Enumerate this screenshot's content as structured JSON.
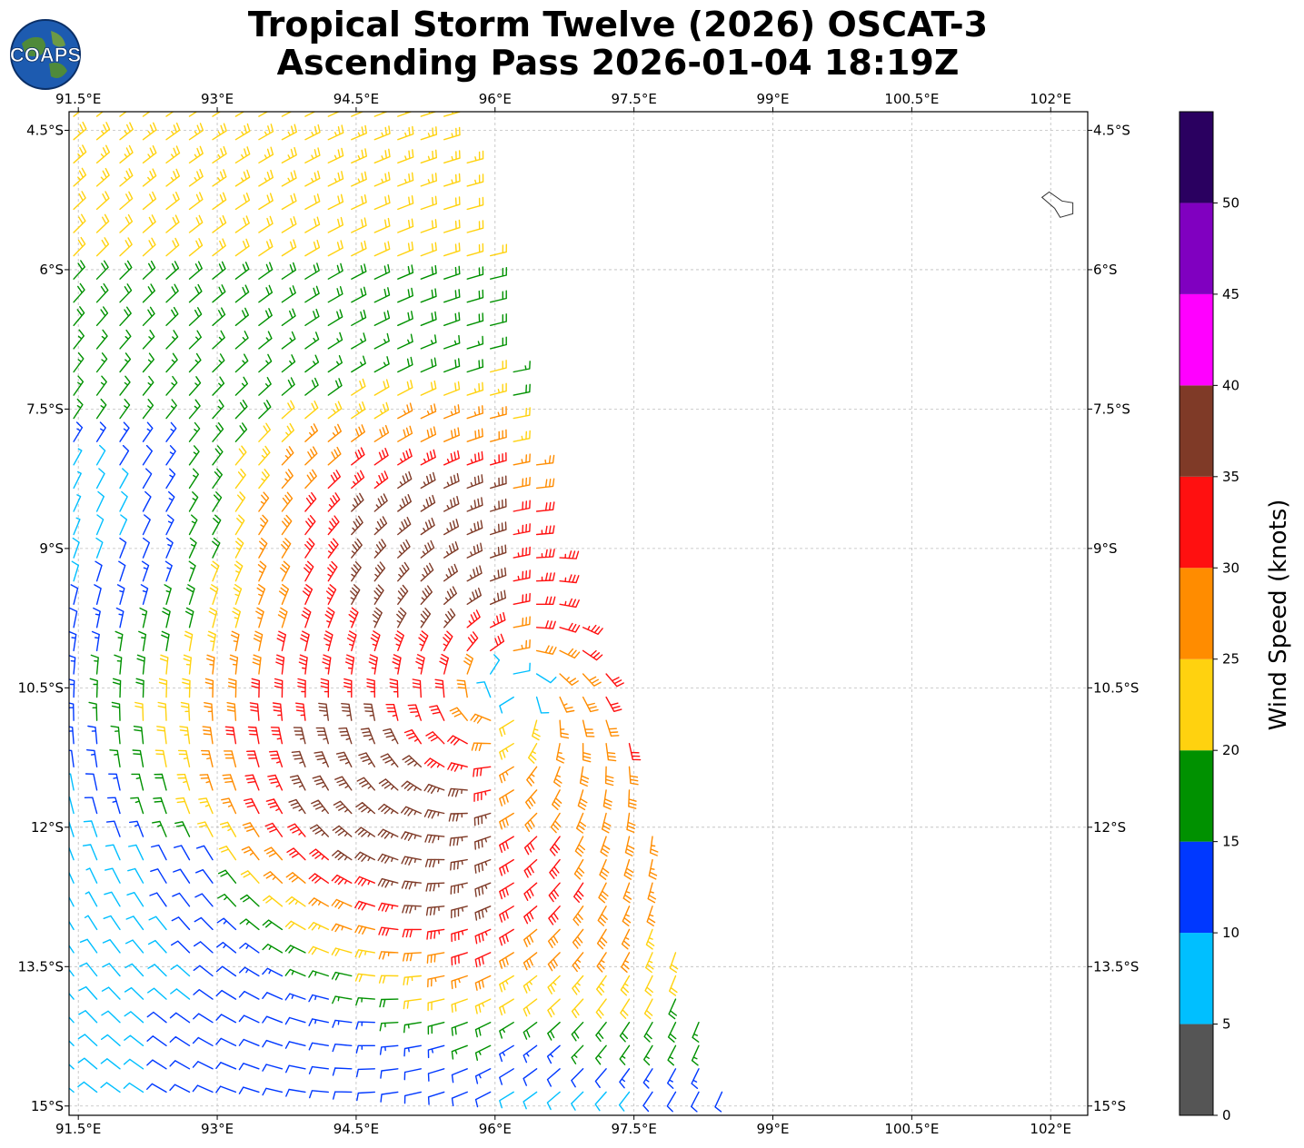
{
  "title": {
    "line1": "Tropical Storm Twelve (2026) OSCAT-3",
    "line2": "Ascending Pass 2026-01-04 18:19Z"
  },
  "logo": {
    "text": "COAPS"
  },
  "map": {
    "lon_range": [
      91.4,
      102.4
    ],
    "lat_range": [
      -15.1,
      -4.3
    ],
    "lon_ticks": [
      {
        "value": 91.5,
        "label": "91.5°E"
      },
      {
        "value": 93,
        "label": "93°E"
      },
      {
        "value": 94.5,
        "label": "94.5°E"
      },
      {
        "value": 96,
        "label": "96°E"
      },
      {
        "value": 97.5,
        "label": "97.5°E"
      },
      {
        "value": 99,
        "label": "99°E"
      },
      {
        "value": 100.5,
        "label": "100.5°E"
      },
      {
        "value": 102,
        "label": "102°E"
      }
    ],
    "lat_ticks": [
      {
        "value": -4.5,
        "label": "4.5°S"
      },
      {
        "value": -6,
        "label": "6°S"
      },
      {
        "value": -7.5,
        "label": "7.5°S"
      },
      {
        "value": -9,
        "label": "9°S"
      },
      {
        "value": -10.5,
        "label": "10.5°S"
      },
      {
        "value": -12,
        "label": "12°S"
      },
      {
        "value": -13.5,
        "label": "13.5°S"
      },
      {
        "value": -15,
        "label": "15°S"
      }
    ],
    "grid": true,
    "storm_center": {
      "lon": 96.2,
      "lat": -10.5
    },
    "swath_edge": [
      {
        "lat": -4.3,
        "lon": 95.6
      },
      {
        "lat": -6,
        "lon": 96.0
      },
      {
        "lat": -7.5,
        "lon": 96.3
      },
      {
        "lat": -9,
        "lon": 96.7
      },
      {
        "lat": -10.5,
        "lon": 97.3
      },
      {
        "lat": -12,
        "lon": 97.7
      },
      {
        "lat": -13.5,
        "lon": 98.0
      },
      {
        "lat": -15.1,
        "lon": 98.6
      }
    ],
    "land": {
      "lon": 102.2,
      "lat": -5.3
    }
  },
  "colorbar": {
    "label": "Wind Speed (knots)",
    "bins": [
      {
        "min": 0,
        "max": 5,
        "color": "#555555"
      },
      {
        "min": 5,
        "max": 10,
        "color": "#00bfff"
      },
      {
        "min": 10,
        "max": 15,
        "color": "#0038ff"
      },
      {
        "min": 15,
        "max": 20,
        "color": "#009100"
      },
      {
        "min": 20,
        "max": 25,
        "color": "#ffd20f"
      },
      {
        "min": 25,
        "max": 30,
        "color": "#ff8c00"
      },
      {
        "min": 30,
        "max": 35,
        "color": "#ff1010"
      },
      {
        "min": 35,
        "max": 40,
        "color": "#7f3a27"
      },
      {
        "min": 40,
        "max": 45,
        "color": "#ff00ff"
      },
      {
        "min": 45,
        "max": 50,
        "color": "#8000c0"
      },
      {
        "min": 50,
        "max": 55,
        "color": "#2a0060"
      }
    ],
    "ticks": [
      "0",
      "5",
      "10",
      "15",
      "20",
      "25",
      "30",
      "35",
      "40",
      "45",
      "50"
    ]
  }
}
